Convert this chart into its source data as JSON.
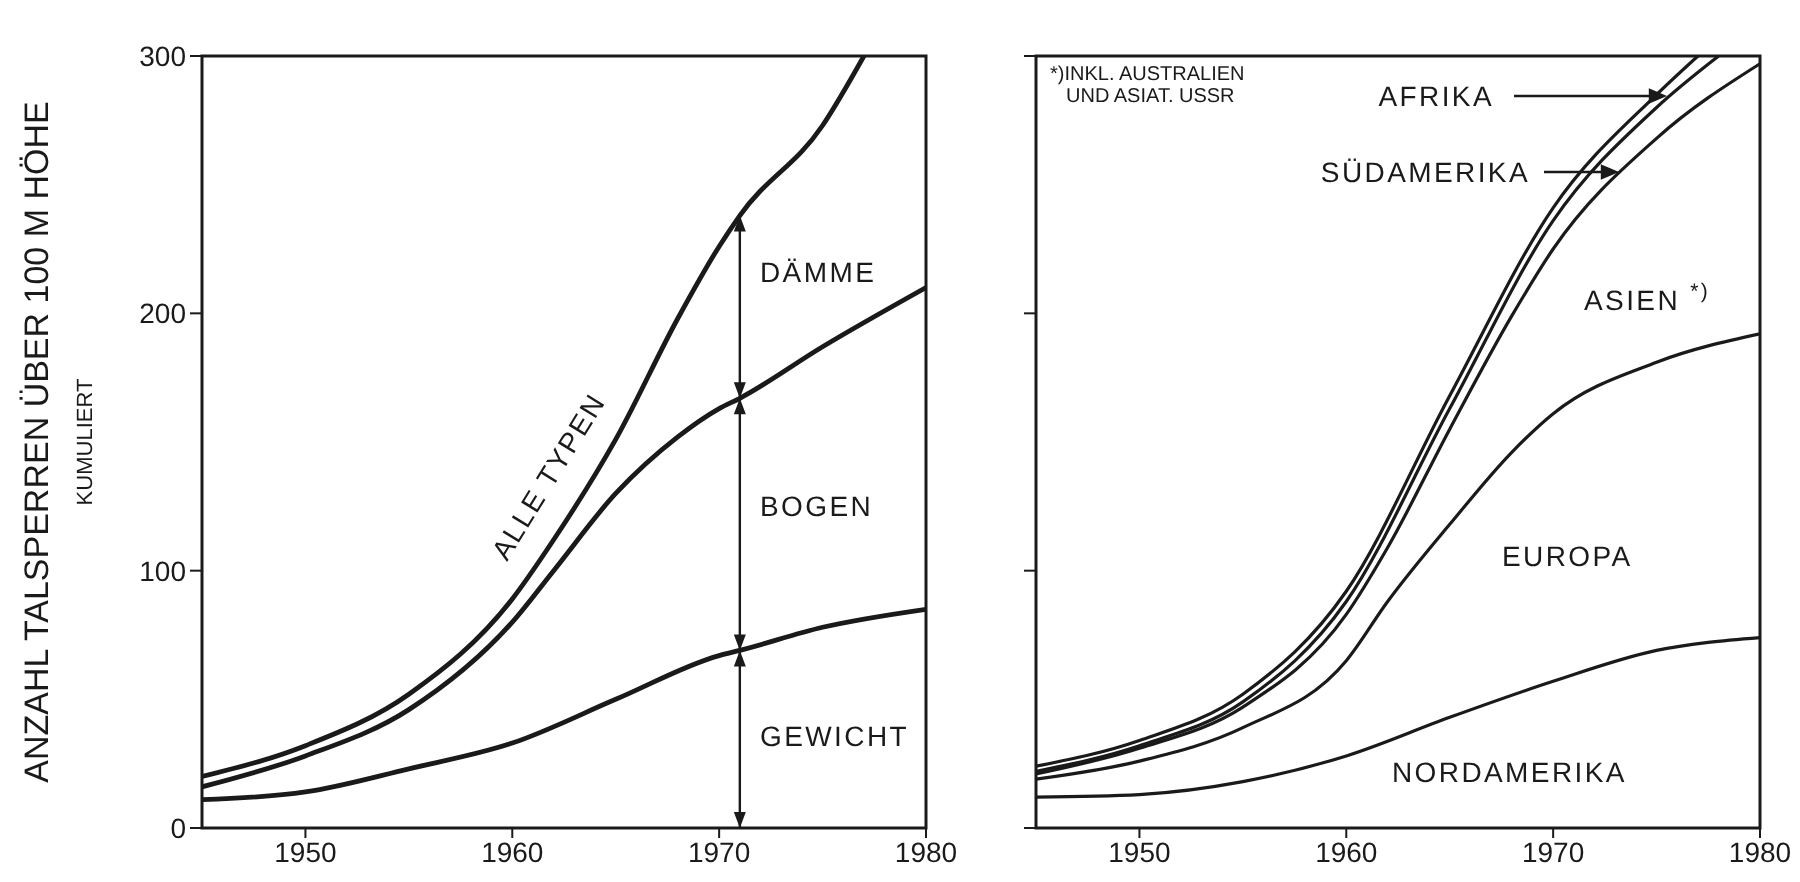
{
  "chart_data": [
    {
      "type": "line",
      "ylabel": "ANZAHL TALSPERREN ÜBER 100 M HÖHE\nKUMULIERT",
      "xlim": [
        1945,
        1980
      ],
      "xticks": [
        1950,
        1960,
        1970,
        1980
      ],
      "ylim": [
        0,
        300
      ],
      "yticks": [
        0,
        100,
        200,
        300
      ],
      "series": [
        {
          "name": "ALLE TYPEN",
          "color": "#1a1a1a",
          "x": [
            1945,
            1950,
            1955,
            1960,
            1962,
            1965,
            1968,
            1970,
            1971,
            1975,
            1977
          ],
          "values": [
            20,
            32,
            52,
            89,
            112,
            151,
            198,
            226,
            238,
            273,
            300
          ]
        },
        {
          "color": "#1a1a1a",
          "x": [
            1945,
            1950,
            1955,
            1960,
            1962,
            1965,
            1968,
            1970,
            1971,
            1975,
            1980
          ],
          "values": [
            16,
            28,
            46,
            80,
            100,
            130,
            152,
            163,
            167,
            187,
            210
          ]
        },
        {
          "color": "#1a1a1a",
          "x": [
            1945,
            1950,
            1955,
            1960,
            1965,
            1970,
            1971,
            1975,
            1980
          ],
          "values": [
            11,
            14,
            23,
            33,
            50,
            67,
            69,
            78,
            85
          ]
        }
      ],
      "ref_lines": [
        {
          "axis": "x",
          "value": 1971
        }
      ],
      "annotations": [
        "DÄMME",
        "BOGEN",
        "GEWICHT"
      ]
    },
    {
      "type": "line",
      "tick_labels": "x",
      "xlim": [
        1945,
        1980
      ],
      "xticks": [
        1950,
        1960,
        1970,
        1980
      ],
      "ylim": [
        0,
        300
      ],
      "yticks": [
        0,
        100,
        200,
        300
      ],
      "series": [
        {
          "color": "#1a1a1a",
          "x": [
            1945,
            1950,
            1955,
            1960,
            1965,
            1970,
            1975,
            1980
          ],
          "values": [
            12,
            13,
            18,
            28,
            43,
            57,
            69,
            74
          ]
        },
        {
          "color": "#1a1a1a",
          "x": [
            1945,
            1950,
            1955,
            1960,
            1962,
            1965,
            1968,
            1970,
            1975,
            1980
          ],
          "values": [
            19,
            26,
            39,
            65,
            88,
            118,
            146,
            161,
            181,
            192
          ]
        },
        {
          "color": "#1a1a1a",
          "x": [
            1945,
            1950,
            1955,
            1960,
            1962,
            1965,
            1968,
            1970,
            1975,
            1980
          ],
          "values": [
            21,
            31,
            47,
            83,
            109,
            155,
            199,
            225,
            268,
            297
          ]
        },
        {
          "color": "#1a1a1a",
          "x": [
            1945,
            1950,
            1955,
            1960,
            1965,
            1970,
            1975,
            1978
          ],
          "values": [
            22,
            32,
            49,
            88,
            163,
            236,
            280,
            300
          ]
        },
        {
          "color": "#1a1a1a",
          "x": [
            1945,
            1950,
            1955,
            1960,
            1965,
            1970,
            1975,
            1977
          ],
          "values": [
            24,
            34,
            52,
            92,
            168,
            241,
            285,
            300
          ]
        }
      ],
      "annotations": [
        "*)INKL. AUSTRALIEN\nUND ASIAT. USSR",
        "AFRIKA",
        "SÜDAMERIKA",
        "ASIEN $^{*)}$",
        "EUROPA",
        "NORDAMERIKA"
      ]
    }
  ]
}
